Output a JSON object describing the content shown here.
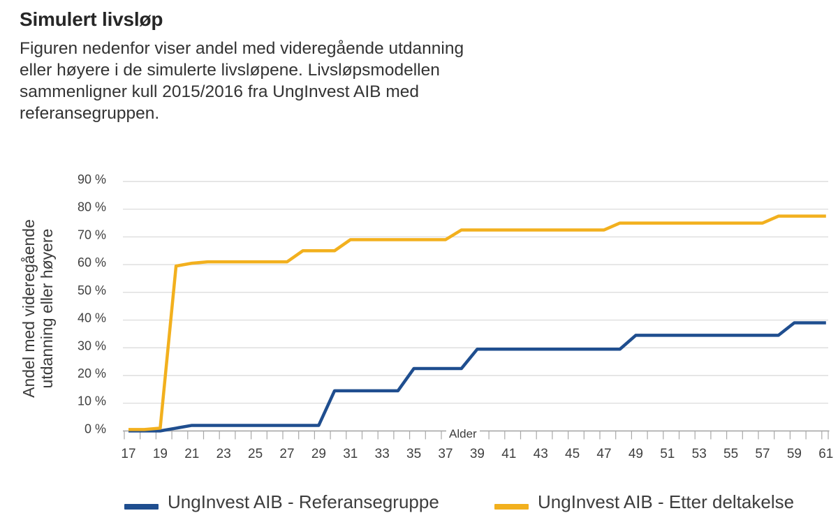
{
  "header": {
    "title": "Simulert livsløp",
    "description_lines": [
      "Figuren nedenfor viser andel med videregående utdanning",
      "eller høyere i de simulerte livsløpene. Livsløpsmodellen",
      "sammenligner kull 2015/2016 fra UngInvest AIB med",
      "referansegruppen."
    ]
  },
  "chart_data": {
    "type": "line",
    "title": "",
    "xlabel": "Alder",
    "ylabel": "Andel med videregående utdanning eller høyere",
    "ylabel_lines": [
      "Andel med videregående",
      "utdanning eller høyere"
    ],
    "ylim": [
      0,
      90
    ],
    "y_tick_step": 10,
    "y_tick_suffix": " %",
    "x_tick_label_step": 2,
    "grid": "horizontal",
    "legend_position": "bottom",
    "categories": [
      17,
      18,
      19,
      20,
      21,
      22,
      23,
      24,
      25,
      26,
      27,
      28,
      29,
      30,
      31,
      32,
      33,
      34,
      35,
      36,
      37,
      38,
      39,
      40,
      41,
      42,
      43,
      44,
      45,
      46,
      47,
      48,
      49,
      50,
      51,
      52,
      53,
      54,
      55,
      56,
      57,
      58,
      59,
      60,
      61
    ],
    "series": [
      {
        "name": "UngInvest AIB - Referansegruppe",
        "color": "#1F4E8F",
        "values": [
          0,
          0,
          0,
          1,
          2,
          2,
          2,
          2,
          2,
          2,
          2,
          2,
          2,
          14.5,
          14.5,
          14.5,
          14.5,
          14.5,
          22.5,
          22.5,
          22.5,
          22.5,
          29.5,
          29.5,
          29.5,
          29.5,
          29.5,
          29.5,
          29.5,
          29.5,
          29.5,
          29.5,
          34.5,
          34.5,
          34.5,
          34.5,
          34.5,
          34.5,
          34.5,
          34.5,
          34.5,
          34.5,
          39,
          39,
          39
        ]
      },
      {
        "name": "UngInvest AIB - Etter deltakelse",
        "color": "#F2B01E",
        "values": [
          0.5,
          0.5,
          1,
          59.5,
          60.5,
          61,
          61,
          61,
          61,
          61,
          61,
          65,
          65,
          65,
          69,
          69,
          69,
          69,
          69,
          69,
          69,
          72.5,
          72.5,
          72.5,
          72.5,
          72.5,
          72.5,
          72.5,
          72.5,
          72.5,
          72.5,
          75,
          75,
          75,
          75,
          75,
          75,
          75,
          75,
          75,
          75,
          77.5,
          77.5,
          77.5,
          77.5
        ]
      }
    ]
  },
  "colors": {
    "axis": "#A8A8A8",
    "gridline": "#D8D8D8",
    "tick_text": "#404040",
    "body_text": "#333333",
    "title_text": "#262626"
  }
}
